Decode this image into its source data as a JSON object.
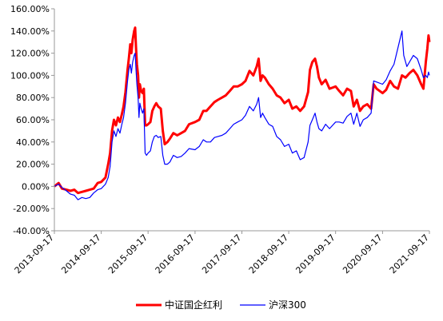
{
  "chart_data": {
    "type": "line",
    "title": "",
    "xlabel": "",
    "ylabel": "",
    "ylim": [
      -40,
      160
    ],
    "y_ticks": [
      -40,
      -20,
      0,
      20,
      40,
      60,
      80,
      100,
      120,
      140,
      160
    ],
    "y_tick_format": "percent_2dp",
    "x_ticks": [
      "2013-09-17",
      "2014-09-17",
      "2015-09-17",
      "2016-09-17",
      "2017-09-17",
      "2018-09-17",
      "2019-09-17",
      "2020-09-17",
      "2021-09-17"
    ],
    "grid": false,
    "legend_position": "bottom",
    "series": [
      {
        "name": "中证国企红利",
        "color": "#ff0000",
        "points": [
          [
            "2013-09-17",
            0
          ],
          [
            "2013-10-20",
            3
          ],
          [
            "2013-11-15",
            -2
          ],
          [
            "2013-12-20",
            -3
          ],
          [
            "2014-01-20",
            -4
          ],
          [
            "2014-02-20",
            -3
          ],
          [
            "2014-03-20",
            -6
          ],
          [
            "2014-04-20",
            -5
          ],
          [
            "2014-05-20",
            -4
          ],
          [
            "2014-06-20",
            -3
          ],
          [
            "2014-07-20",
            -2
          ],
          [
            "2014-08-20",
            3
          ],
          [
            "2014-09-17",
            4
          ],
          [
            "2014-10-20",
            8
          ],
          [
            "2014-11-10",
            20
          ],
          [
            "2014-11-25",
            30
          ],
          [
            "2014-12-10",
            50
          ],
          [
            "2014-12-25",
            60
          ],
          [
            "2015-01-10",
            55
          ],
          [
            "2015-01-25",
            62
          ],
          [
            "2015-02-10",
            58
          ],
          [
            "2015-02-25",
            65
          ],
          [
            "2015-03-10",
            72
          ],
          [
            "2015-03-25",
            85
          ],
          [
            "2015-04-10",
            105
          ],
          [
            "2015-04-20",
            115
          ],
          [
            "2015-05-01",
            128
          ],
          [
            "2015-05-10",
            120
          ],
          [
            "2015-05-20",
            132
          ],
          [
            "2015-06-01",
            140
          ],
          [
            "2015-06-08",
            143
          ],
          [
            "2015-06-15",
            125
          ],
          [
            "2015-06-22",
            110
          ],
          [
            "2015-07-01",
            100
          ],
          [
            "2015-07-08",
            80
          ],
          [
            "2015-07-15",
            92
          ],
          [
            "2015-07-25",
            86
          ],
          [
            "2015-08-05",
            84
          ],
          [
            "2015-08-15",
            88
          ],
          [
            "2015-08-25",
            55
          ],
          [
            "2015-09-05",
            55
          ],
          [
            "2015-09-17",
            56
          ],
          [
            "2015-10-05",
            58
          ],
          [
            "2015-10-20",
            68
          ],
          [
            "2015-11-05",
            72
          ],
          [
            "2015-11-20",
            75
          ],
          [
            "2015-12-05",
            72
          ],
          [
            "2015-12-25",
            70
          ],
          [
            "2016-01-10",
            50
          ],
          [
            "2016-01-25",
            38
          ],
          [
            "2016-02-15",
            40
          ],
          [
            "2016-03-05",
            43
          ],
          [
            "2016-04-01",
            48
          ],
          [
            "2016-05-01",
            46
          ],
          [
            "2016-06-01",
            48
          ],
          [
            "2016-07-01",
            50
          ],
          [
            "2016-08-01",
            56
          ],
          [
            "2016-09-17",
            58
          ],
          [
            "2016-10-20",
            60
          ],
          [
            "2016-11-20",
            68
          ],
          [
            "2016-12-15",
            68
          ],
          [
            "2017-01-15",
            72
          ],
          [
            "2017-02-15",
            76
          ],
          [
            "2017-03-15",
            78
          ],
          [
            "2017-04-15",
            80
          ],
          [
            "2017-05-15",
            82
          ],
          [
            "2017-06-15",
            86
          ],
          [
            "2017-07-15",
            90
          ],
          [
            "2017-08-15",
            90
          ],
          [
            "2017-09-17",
            92
          ],
          [
            "2017-10-15",
            95
          ],
          [
            "2017-11-15",
            104
          ],
          [
            "2017-12-15",
            100
          ],
          [
            "2018-01-10",
            108
          ],
          [
            "2018-01-25",
            115
          ],
          [
            "2018-02-10",
            95
          ],
          [
            "2018-02-25",
            100
          ],
          [
            "2018-03-15",
            98
          ],
          [
            "2018-04-15",
            92
          ],
          [
            "2018-05-15",
            88
          ],
          [
            "2018-06-15",
            82
          ],
          [
            "2018-07-15",
            80
          ],
          [
            "2018-08-15",
            75
          ],
          [
            "2018-09-17",
            78
          ],
          [
            "2018-10-15",
            70
          ],
          [
            "2018-11-15",
            72
          ],
          [
            "2018-12-15",
            68
          ],
          [
            "2019-01-15",
            72
          ],
          [
            "2019-02-15",
            85
          ],
          [
            "2019-03-01",
            105
          ],
          [
            "2019-03-20",
            112
          ],
          [
            "2019-04-10",
            115
          ],
          [
            "2019-04-25",
            108
          ],
          [
            "2019-05-10",
            98
          ],
          [
            "2019-06-01",
            92
          ],
          [
            "2019-07-01",
            96
          ],
          [
            "2019-08-01",
            88
          ],
          [
            "2019-09-17",
            90
          ],
          [
            "2019-10-15",
            86
          ],
          [
            "2019-11-15",
            82
          ],
          [
            "2019-12-15",
            88
          ],
          [
            "2020-01-15",
            86
          ],
          [
            "2020-02-05",
            72
          ],
          [
            "2020-03-01",
            78
          ],
          [
            "2020-03-25",
            68
          ],
          [
            "2020-04-20",
            72
          ],
          [
            "2020-05-20",
            74
          ],
          [
            "2020-06-20",
            70
          ],
          [
            "2020-07-10",
            92
          ],
          [
            "2020-08-01",
            88
          ],
          [
            "2020-09-17",
            84
          ],
          [
            "2020-10-15",
            87
          ],
          [
            "2020-11-15",
            95
          ],
          [
            "2020-12-15",
            90
          ],
          [
            "2021-01-15",
            88
          ],
          [
            "2021-02-15",
            100
          ],
          [
            "2021-03-15",
            98
          ],
          [
            "2021-04-15",
            102
          ],
          [
            "2021-05-15",
            105
          ],
          [
            "2021-06-15",
            100
          ],
          [
            "2021-07-15",
            92
          ],
          [
            "2021-08-01",
            88
          ],
          [
            "2021-08-20",
            112
          ],
          [
            "2021-09-01",
            124
          ],
          [
            "2021-09-10",
            136
          ],
          [
            "2021-09-17",
            130
          ]
        ]
      },
      {
        "name": "沪深300",
        "color": "#0000ff",
        "points": [
          [
            "2013-09-17",
            0
          ],
          [
            "2013-10-20",
            2
          ],
          [
            "2013-11-15",
            -1
          ],
          [
            "2013-12-20",
            -4
          ],
          [
            "2014-01-20",
            -7
          ],
          [
            "2014-02-20",
            -8
          ],
          [
            "2014-03-20",
            -12
          ],
          [
            "2014-04-20",
            -10
          ],
          [
            "2014-05-20",
            -11
          ],
          [
            "2014-06-20",
            -10
          ],
          [
            "2014-07-20",
            -6
          ],
          [
            "2014-08-20",
            -3
          ],
          [
            "2014-09-17",
            -2
          ],
          [
            "2014-10-20",
            2
          ],
          [
            "2014-11-10",
            8
          ],
          [
            "2014-11-25",
            18
          ],
          [
            "2014-12-10",
            40
          ],
          [
            "2014-12-25",
            50
          ],
          [
            "2015-01-10",
            45
          ],
          [
            "2015-01-25",
            52
          ],
          [
            "2015-02-10",
            48
          ],
          [
            "2015-02-25",
            56
          ],
          [
            "2015-03-10",
            62
          ],
          [
            "2015-03-25",
            75
          ],
          [
            "2015-04-10",
            95
          ],
          [
            "2015-04-20",
            105
          ],
          [
            "2015-05-01",
            110
          ],
          [
            "2015-05-10",
            102
          ],
          [
            "2015-05-20",
            112
          ],
          [
            "2015-06-01",
            118
          ],
          [
            "2015-06-08",
            120
          ],
          [
            "2015-06-15",
            105
          ],
          [
            "2015-06-22",
            92
          ],
          [
            "2015-07-01",
            80
          ],
          [
            "2015-07-08",
            62
          ],
          [
            "2015-07-15",
            75
          ],
          [
            "2015-07-25",
            70
          ],
          [
            "2015-08-05",
            66
          ],
          [
            "2015-08-15",
            70
          ],
          [
            "2015-08-25",
            30
          ],
          [
            "2015-09-05",
            28
          ],
          [
            "2015-09-17",
            30
          ],
          [
            "2015-10-05",
            32
          ],
          [
            "2015-10-20",
            40
          ],
          [
            "2015-11-05",
            45
          ],
          [
            "2015-11-20",
            46
          ],
          [
            "2015-12-05",
            44
          ],
          [
            "2015-12-25",
            45
          ],
          [
            "2016-01-10",
            28
          ],
          [
            "2016-01-25",
            20
          ],
          [
            "2016-02-15",
            20
          ],
          [
            "2016-03-05",
            22
          ],
          [
            "2016-04-01",
            28
          ],
          [
            "2016-05-01",
            26
          ],
          [
            "2016-06-01",
            27
          ],
          [
            "2016-07-01",
            30
          ],
          [
            "2016-08-01",
            34
          ],
          [
            "2016-09-17",
            33
          ],
          [
            "2016-10-20",
            36
          ],
          [
            "2016-11-20",
            42
          ],
          [
            "2016-12-15",
            40
          ],
          [
            "2017-01-15",
            40
          ],
          [
            "2017-02-15",
            44
          ],
          [
            "2017-03-15",
            45
          ],
          [
            "2017-04-15",
            46
          ],
          [
            "2017-05-15",
            48
          ],
          [
            "2017-06-15",
            52
          ],
          [
            "2017-07-15",
            56
          ],
          [
            "2017-08-15",
            58
          ],
          [
            "2017-09-17",
            60
          ],
          [
            "2017-10-15",
            64
          ],
          [
            "2017-11-15",
            72
          ],
          [
            "2017-12-15",
            68
          ],
          [
            "2018-01-10",
            74
          ],
          [
            "2018-01-25",
            80
          ],
          [
            "2018-02-10",
            62
          ],
          [
            "2018-02-25",
            66
          ],
          [
            "2018-03-15",
            62
          ],
          [
            "2018-04-15",
            56
          ],
          [
            "2018-05-15",
            54
          ],
          [
            "2018-06-15",
            45
          ],
          [
            "2018-07-15",
            42
          ],
          [
            "2018-08-15",
            36
          ],
          [
            "2018-09-17",
            38
          ],
          [
            "2018-10-15",
            30
          ],
          [
            "2018-11-15",
            32
          ],
          [
            "2018-12-15",
            24
          ],
          [
            "2019-01-15",
            26
          ],
          [
            "2019-02-15",
            40
          ],
          [
            "2019-03-01",
            55
          ],
          [
            "2019-03-20",
            60
          ],
          [
            "2019-04-10",
            66
          ],
          [
            "2019-04-25",
            58
          ],
          [
            "2019-05-10",
            52
          ],
          [
            "2019-06-01",
            50
          ],
          [
            "2019-07-01",
            56
          ],
          [
            "2019-08-01",
            52
          ],
          [
            "2019-09-17",
            58
          ],
          [
            "2019-10-15",
            58
          ],
          [
            "2019-11-15",
            57
          ],
          [
            "2019-12-15",
            63
          ],
          [
            "2020-01-15",
            66
          ],
          [
            "2020-02-05",
            56
          ],
          [
            "2020-03-01",
            66
          ],
          [
            "2020-03-25",
            54
          ],
          [
            "2020-04-20",
            60
          ],
          [
            "2020-05-20",
            62
          ],
          [
            "2020-06-20",
            66
          ],
          [
            "2020-07-10",
            95
          ],
          [
            "2020-08-01",
            94
          ],
          [
            "2020-09-17",
            92
          ],
          [
            "2020-10-15",
            96
          ],
          [
            "2020-11-15",
            104
          ],
          [
            "2020-12-15",
            110
          ],
          [
            "2021-01-15",
            125
          ],
          [
            "2021-02-15",
            140
          ],
          [
            "2021-03-01",
            118
          ],
          [
            "2021-03-25",
            108
          ],
          [
            "2021-04-15",
            112
          ],
          [
            "2021-05-15",
            118
          ],
          [
            "2021-06-15",
            115
          ],
          [
            "2021-07-15",
            105
          ],
          [
            "2021-08-01",
            98
          ],
          [
            "2021-08-20",
            100
          ],
          [
            "2021-09-01",
            98
          ],
          [
            "2021-09-10",
            103
          ],
          [
            "2021-09-17",
            100
          ]
        ]
      }
    ]
  }
}
